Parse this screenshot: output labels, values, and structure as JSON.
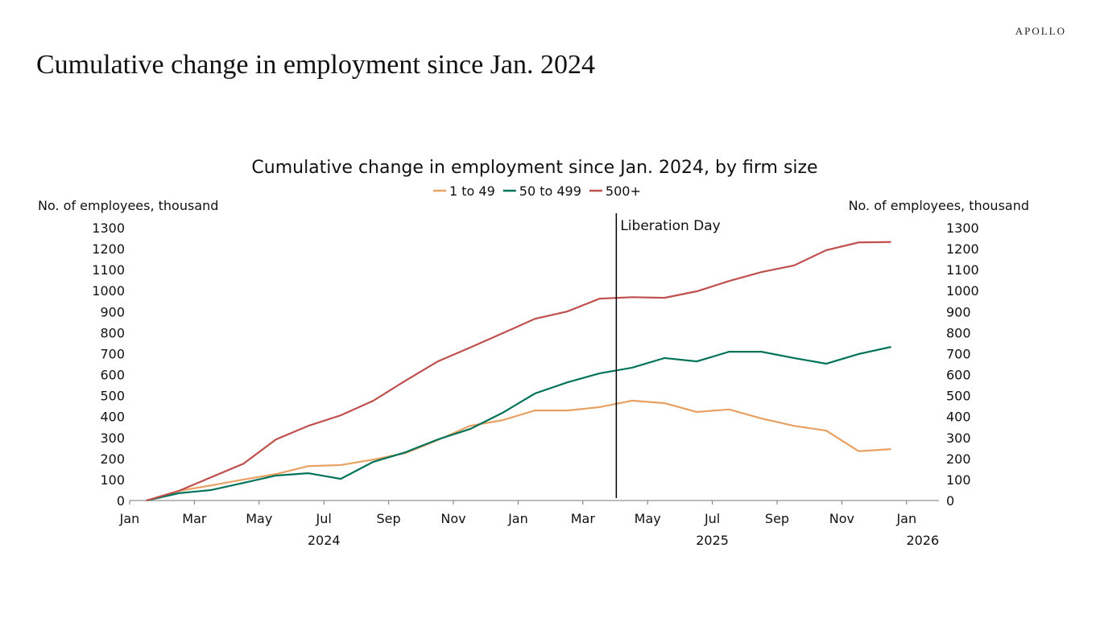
{
  "brand": "APOLLO",
  "page_title": "Cumulative change in employment since Jan. 2024",
  "chart_data": {
    "type": "line",
    "title": "Cumulative change in employment since Jan. 2024, by firm size",
    "ylabel_left": "No. of employees, thousand",
    "ylabel_right": "No. of employees, thousand",
    "ylim": [
      0,
      1300
    ],
    "yticks": [
      0,
      100,
      200,
      300,
      400,
      500,
      600,
      700,
      800,
      900,
      1000,
      1100,
      1200,
      1300
    ],
    "xticks": [
      {
        "label": "Jan",
        "date": "2024-01"
      },
      {
        "label": "Mar",
        "date": "2024-03"
      },
      {
        "label": "May",
        "date": "2024-05"
      },
      {
        "label": "Jul",
        "date": "2024-07"
      },
      {
        "label": "Sep",
        "date": "2024-09"
      },
      {
        "label": "Nov",
        "date": "2024-11"
      },
      {
        "label": "Jan",
        "date": "2025-01"
      },
      {
        "label": "Mar",
        "date": "2025-03"
      },
      {
        "label": "May",
        "date": "2025-05"
      },
      {
        "label": "Jul",
        "date": "2025-07"
      },
      {
        "label": "Sep",
        "date": "2025-09"
      },
      {
        "label": "Nov",
        "date": "2025-11"
      },
      {
        "label": "Jan",
        "date": "2026-01"
      }
    ],
    "year_labels": [
      {
        "label": "2024",
        "date": "2024-07"
      },
      {
        "label": "2025",
        "date": "2025-07"
      },
      {
        "label": "2026",
        "date": "2026-01"
      }
    ],
    "x": [
      "2024-01",
      "2024-02",
      "2024-03",
      "2024-04",
      "2024-05",
      "2024-06",
      "2024-07",
      "2024-08",
      "2024-09",
      "2024-10",
      "2024-11",
      "2024-12",
      "2025-01",
      "2025-02",
      "2025-03",
      "2025-04",
      "2025-05",
      "2025-06",
      "2025-07",
      "2025-08",
      "2025-09",
      "2025-10",
      "2025-11",
      "2025-12"
    ],
    "series": [
      {
        "name": "1 to 49",
        "color": "#E8A063",
        "values": [
          0,
          46,
          72,
          100,
          126,
          164,
          169,
          195,
          226,
          288,
          356,
          383,
          429,
          429,
          445,
          476,
          464,
          422,
          434,
          391,
          356,
          333,
          235,
          245
        ]
      },
      {
        "name": "50 to 499",
        "color": "#00735A",
        "values": [
          0,
          35,
          50,
          84,
          119,
          130,
          103,
          184,
          230,
          291,
          341,
          418,
          510,
          563,
          606,
          633,
          679,
          663,
          709,
          709,
          679,
          652,
          698,
          732
        ]
      },
      {
        "name": "500+",
        "color": "#C0504D",
        "values": [
          0,
          46,
          111,
          176,
          291,
          356,
          406,
          475,
          571,
          663,
          729,
          797,
          866,
          901,
          962,
          969,
          966,
          997,
          1046,
          1089,
          1120,
          1193,
          1230,
          1232
        ]
      }
    ],
    "annotation": {
      "label": "Liberation Day",
      "date": "2025-04-02"
    },
    "legend_position": "top-center",
    "grid": false
  }
}
